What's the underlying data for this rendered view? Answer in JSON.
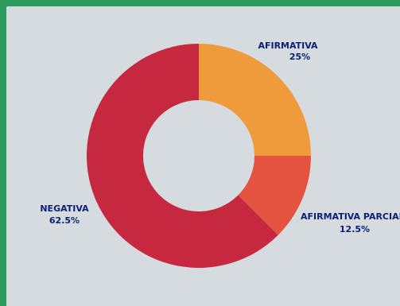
{
  "chart_data": {
    "type": "pie",
    "variant": "donut",
    "title": "",
    "categories": [
      "AFIRMATIVA",
      "AFIRMATIVA PARCIAL",
      "NEGATIVA"
    ],
    "values": [
      25,
      12.5,
      62.5
    ],
    "value_labels": [
      "25%",
      "12.5%",
      "62.5%"
    ],
    "colors": [
      "#ef9b3c",
      "#e4533f",
      "#c5283f"
    ],
    "start_angle_deg": 0,
    "direction": "clockwise"
  },
  "colors": {
    "board": "#d6dbe0",
    "frame": "#2e9a5e",
    "label": "#0c1f73"
  }
}
